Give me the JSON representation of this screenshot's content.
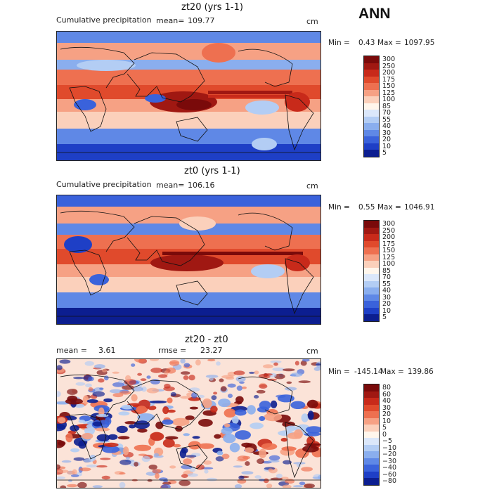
{
  "page": {
    "label": "ANN"
  },
  "panels": [
    {
      "title": "zt20 (yrs 1-1)",
      "left_label": "Cumulative precipitation",
      "stat_label": "mean=",
      "stat_value": "109.77",
      "rmse_label": "",
      "rmse_value": "",
      "units": "cm",
      "min_label": "Min =",
      "min_value": "0.43",
      "max_label": "Max =",
      "max_value": "1097.95",
      "colorbar": {
        "levels": [
          "300",
          "250",
          "200",
          "175",
          "150",
          "125",
          "100",
          "85",
          "70",
          "55",
          "40",
          "30",
          "20",
          "10",
          "5"
        ],
        "colors": [
          "#7a0a0a",
          "#a01812",
          "#c82a1a",
          "#e04a2c",
          "#ee7050",
          "#f6a184",
          "#fbd0bb",
          "#fff6ec",
          "#dbe7fa",
          "#b3cdf4",
          "#8aaeee",
          "#5f88e6",
          "#3a62db",
          "#1e3fc6",
          "#0c1e90"
        ]
      }
    },
    {
      "title": "zt0 (yrs 1-1)",
      "left_label": "Cumulative precipitation",
      "stat_label": "mean=",
      "stat_value": "106.16",
      "rmse_label": "",
      "rmse_value": "",
      "units": "cm",
      "min_label": "Min =",
      "min_value": "0.55",
      "max_label": "Max =",
      "max_value": "1046.91",
      "colorbar": {
        "levels": [
          "300",
          "250",
          "200",
          "175",
          "150",
          "125",
          "100",
          "85",
          "70",
          "55",
          "40",
          "30",
          "20",
          "10",
          "5"
        ],
        "colors": [
          "#7a0a0a",
          "#a01812",
          "#c82a1a",
          "#e04a2c",
          "#ee7050",
          "#f6a184",
          "#fbd0bb",
          "#fff6ec",
          "#dbe7fa",
          "#b3cdf4",
          "#8aaeee",
          "#5f88e6",
          "#3a62db",
          "#1e3fc6",
          "#0c1e90"
        ]
      }
    },
    {
      "title": "zt20 - zt0",
      "left_label": "mean =",
      "stat_label": "",
      "stat_value": "3.61",
      "rmse_label": "rmse =",
      "rmse_value": "23.27",
      "units": "cm",
      "min_label": "Min =",
      "min_value": "-145.14",
      "max_label": "Max =",
      "max_value": "139.86",
      "colorbar": {
        "levels": [
          "80",
          "60",
          "40",
          "30",
          "20",
          "10",
          "5",
          "0",
          "−5",
          "−10",
          "−20",
          "−30",
          "−40",
          "−60",
          "−80"
        ],
        "colors": [
          "#7a0a0a",
          "#a01812",
          "#c82a1a",
          "#e04a2c",
          "#ee7050",
          "#f6a184",
          "#fbd0bb",
          "#fff6ec",
          "#dbe7fa",
          "#b3cdf4",
          "#8aaeee",
          "#5f88e6",
          "#3a62db",
          "#1e3fc6",
          "#0c1e90"
        ]
      }
    }
  ]
}
